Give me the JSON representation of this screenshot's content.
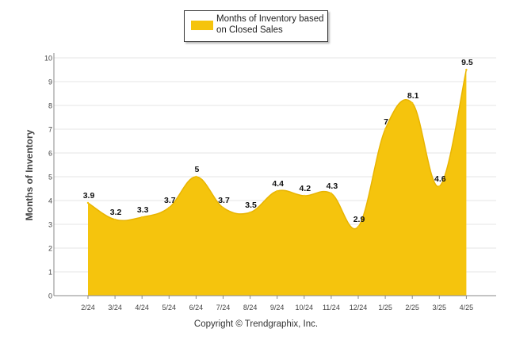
{
  "chart_data": {
    "type": "area",
    "categories": [
      "2/24",
      "3/24",
      "4/24",
      "5/24",
      "6/24",
      "7/24",
      "8/24",
      "9/24",
      "10/24",
      "11/24",
      "12/24",
      "1/25",
      "2/25",
      "3/25",
      "4/25"
    ],
    "series": [
      {
        "name": "Months of Inventory based on Closed Sales",
        "values": [
          3.9,
          3.2,
          3.3,
          3.7,
          5,
          3.7,
          3.5,
          4.4,
          4.2,
          4.3,
          2.9,
          7,
          8.1,
          4.6,
          9.5
        ]
      }
    ],
    "data_labels": [
      "3.9",
      "3.2",
      "3.3",
      "3.7",
      "5",
      "3.7",
      "3.5",
      "4.4",
      "4.2",
      "4.3",
      "2.9",
      "7",
      "8.1",
      "4.6",
      "9.5"
    ],
    "yticks": [
      "0",
      "1",
      "2",
      "3",
      "4",
      "5",
      "6",
      "7",
      "8",
      "9",
      "10"
    ],
    "ylim": [
      0,
      10
    ],
    "ylabel": "Months of Inventory",
    "xlabel": "",
    "grid": true,
    "legend_position": "top-center",
    "colors": {
      "area": "#f5c40d",
      "grid": "#e6e6e6",
      "axis": "#888888"
    }
  },
  "legend": {
    "label": "Months of Inventory based on Closed Sales"
  },
  "footer": {
    "copyright": "Copyright © Trendgraphix, Inc."
  }
}
